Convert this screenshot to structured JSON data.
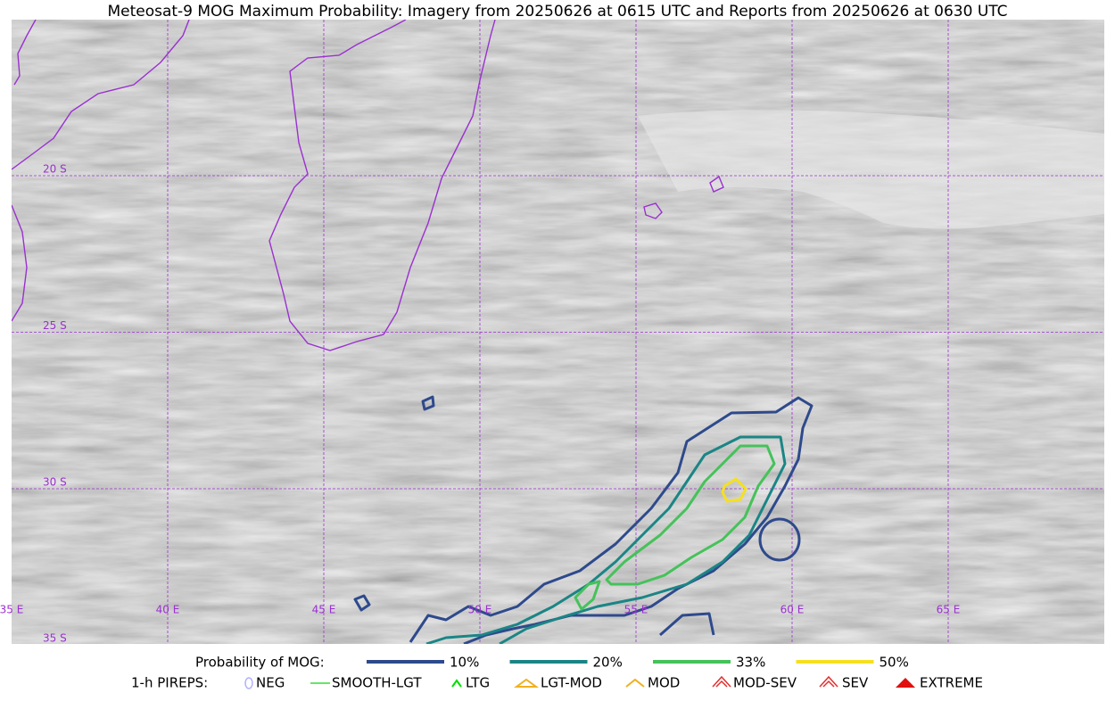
{
  "title": "Meteosat-9 MOG Maximum Probability: Imagery from 20250626 at 0615 UTC and Reports from 20250626 at 0630 UTC",
  "map": {
    "lon_labels": [
      "35 E",
      "40 E",
      "45 E",
      "50 E",
      "55 E",
      "60 E",
      "65 E"
    ],
    "lat_labels": [
      "20 S",
      "25 S",
      "30 S",
      "35 S"
    ]
  },
  "legend": {
    "probability": {
      "label": "Probability of MOG:",
      "items": [
        {
          "label": "10%",
          "color": "#2e4a8c"
        },
        {
          "label": "20%",
          "color": "#1b8585"
        },
        {
          "label": "33%",
          "color": "#45c25a"
        },
        {
          "label": "50%",
          "color": "#f5e020"
        }
      ]
    },
    "pireps": {
      "label": "1-h PIREPS:",
      "items": [
        "NEG",
        "SMOOTH-LGT",
        "LTG",
        "LGT-MOD",
        "MOD",
        "MOD-SEV",
        "SEV",
        "EXTREME"
      ]
    }
  }
}
